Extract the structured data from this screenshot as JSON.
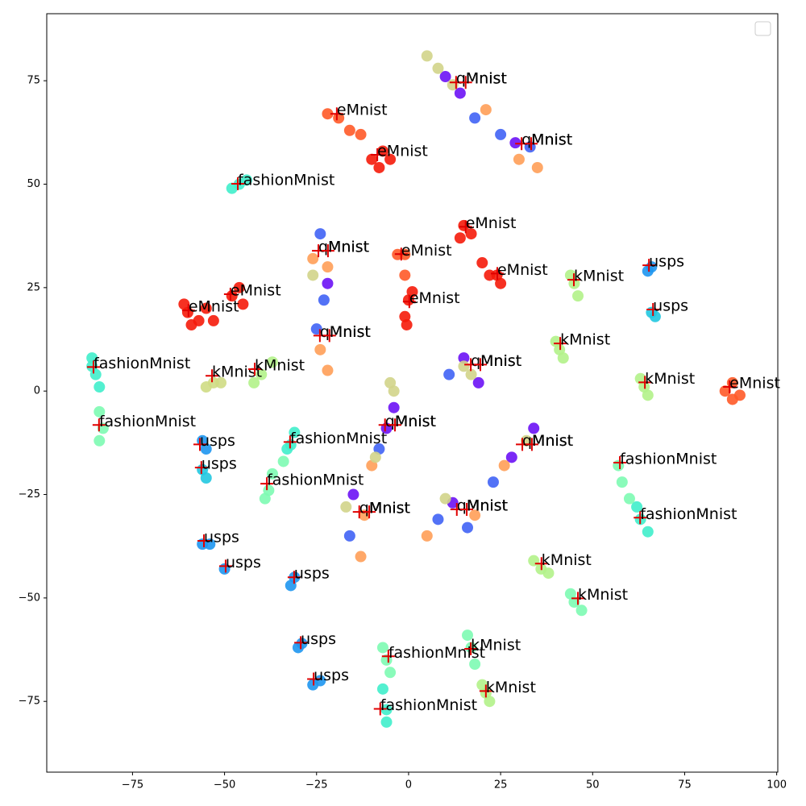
{
  "chart_data": {
    "type": "scatter",
    "xlim": [
      -98.3,
      100.3
    ],
    "ylim": [
      -92.1,
      91.2
    ],
    "xticks": [
      {
        "value": -75,
        "label": "−75"
      },
      {
        "value": -50,
        "label": "−50"
      },
      {
        "value": -25,
        "label": "−25"
      },
      0,
      25,
      50,
      75,
      100
    ],
    "yticks": [
      {
        "value": -75,
        "label": "−75"
      },
      {
        "value": -50,
        "label": "−50"
      },
      {
        "value": -25,
        "label": "−25"
      },
      0,
      25,
      50,
      75
    ],
    "legend": "upper right",
    "marker_color": "#e00000",
    "series": [
      {
        "color": "#f51b0a",
        "x": [
          -10,
          -7,
          -8,
          -5,
          -60,
          -57,
          -55,
          -61,
          -59,
          -53,
          -48,
          -46,
          -45,
          15,
          17,
          14,
          20,
          22,
          25,
          24,
          0,
          -1,
          1,
          -0.5
        ],
        "y": [
          56,
          58,
          54,
          56,
          19,
          17,
          20,
          21,
          16,
          17,
          23,
          25,
          21,
          40,
          38,
          37,
          31,
          28,
          26,
          28,
          22,
          18,
          24,
          16
        ]
      },
      {
        "color": "#ff5a28",
        "x": [
          -22,
          -19,
          -16,
          -13,
          86,
          88,
          88,
          90,
          -3,
          -1,
          -1
        ],
        "y": [
          67,
          66,
          63,
          62,
          0,
          -2,
          2,
          -1,
          33,
          33,
          28
        ]
      },
      {
        "color": "#40eecb",
        "x": [
          -46,
          -48,
          -44,
          -86,
          -85,
          -84,
          -86,
          -32,
          -31,
          -33,
          -6,
          -6,
          -7,
          63,
          65,
          62
        ],
        "y": [
          50,
          49,
          51,
          8,
          4,
          1,
          6,
          -13,
          -10,
          -14,
          -77,
          -80,
          -72,
          -31,
          -34,
          -28
        ]
      },
      {
        "color": "#7dfbb2",
        "x": [
          -83,
          -84,
          -84,
          -38,
          -37,
          -34,
          -39,
          -6,
          -7,
          -5,
          57,
          58,
          60,
          45,
          47,
          44,
          17,
          16,
          18
        ],
        "y": [
          -9,
          -12,
          -5,
          -24,
          -20,
          -17,
          -26,
          -65,
          -62,
          -68,
          -18,
          -22,
          -26,
          -51,
          -53,
          -49,
          -62,
          -59,
          -66
        ]
      },
      {
        "color": "#b2f28a",
        "x": [
          45,
          44,
          46,
          41,
          40,
          42,
          64,
          63,
          65,
          36,
          34,
          38,
          21,
          20,
          22,
          -40,
          -42,
          -37
        ],
        "y": [
          26,
          28,
          23,
          10,
          12,
          8,
          1,
          3,
          -1,
          -43,
          -41,
          -44,
          -73,
          -71,
          -75,
          4,
          2,
          7
        ]
      },
      {
        "color": "#cfdc84",
        "x": [
          -53,
          -55,
          -51
        ],
        "y": [
          2,
          1,
          2
        ]
      },
      {
        "color": "#1e96f0",
        "x": [
          65,
          66,
          -55,
          -56,
          -56,
          -54,
          -50,
          -31,
          -32,
          -30,
          -29,
          -26,
          -24
        ],
        "y": [
          29,
          30,
          -14,
          -12,
          -37,
          -37,
          -43,
          -45,
          -47,
          -62,
          -61,
          -71,
          -70
        ]
      },
      {
        "color": "#22c8e0",
        "x": [
          67,
          66,
          -56,
          -55
        ],
        "y": [
          18,
          19,
          -19,
          -21
        ]
      },
      {
        "color": "#6b12f5",
        "x": [
          10,
          14,
          29,
          -22,
          15,
          19,
          -4,
          -6,
          28,
          34,
          -15,
          12
        ],
        "y": [
          76,
          72,
          60,
          26,
          8,
          2,
          -4,
          -9,
          -16,
          -9,
          -25,
          -27
        ]
      },
      {
        "color": "#4063f5",
        "x": [
          18,
          25,
          33,
          -24,
          -23,
          -25,
          11,
          -8,
          23,
          -16,
          8,
          16
        ],
        "y": [
          66,
          62,
          59,
          38,
          22,
          15,
          4,
          -14,
          -22,
          -35,
          -31,
          -33
        ]
      },
      {
        "color": "#ff9f58",
        "x": [
          21,
          35,
          30,
          -26,
          -22,
          -24,
          -22,
          -10,
          -12,
          18,
          5,
          26,
          -13
        ],
        "y": [
          68,
          54,
          56,
          32,
          30,
          10,
          5,
          -18,
          -30,
          -30,
          -35,
          -18,
          -40
        ]
      },
      {
        "color": "#d2d48a",
        "x": [
          5,
          8,
          12,
          15,
          17,
          -5,
          -4,
          -9,
          32,
          -26,
          -17,
          10
        ],
        "y": [
          81,
          78,
          74,
          6,
          4,
          2,
          0,
          -16,
          -12,
          28,
          -28,
          -26
        ]
      }
    ],
    "annotations": [
      {
        "text": "qMnist",
        "x": 12.9,
        "y": 74.6
      },
      {
        "text": "Mnist",
        "x": 15.5,
        "y": 74.6
      },
      {
        "text": "qMnist",
        "x": 30.7,
        "y": 59.8
      },
      {
        "text": "Mnist",
        "x": 33.3,
        "y": 59.8
      },
      {
        "text": "eMnist",
        "x": -19.5,
        "y": 67.0
      },
      {
        "text": "eMnist",
        "x": -8.5,
        "y": 57.1
      },
      {
        "text": "fashionMnist",
        "x": -46.4,
        "y": 50.1
      },
      {
        "text": "eMnist",
        "x": 15.5,
        "y": 39.7
      },
      {
        "text": "eMnist",
        "x": -2.0,
        "y": 33.1
      },
      {
        "text": "eMnist",
        "x": 24.1,
        "y": 28.4
      },
      {
        "text": "eMnist",
        "x": 0.2,
        "y": 21.6
      },
      {
        "text": "eMnist",
        "x": -48.4,
        "y": 23.4
      },
      {
        "text": "eMnist",
        "x": -59.8,
        "y": 19.5
      },
      {
        "text": "qMnist",
        "x": -24.5,
        "y": 33.9
      },
      {
        "text": "Mnist",
        "x": -21.9,
        "y": 33.9
      },
      {
        "text": "usps",
        "x": 65.3,
        "y": 30.4
      },
      {
        "text": "usps",
        "x": 66.4,
        "y": 19.7
      },
      {
        "text": "kMnist",
        "x": 44.9,
        "y": 26.9
      },
      {
        "text": "kMnist",
        "x": 41.2,
        "y": 11.5
      },
      {
        "text": "kMnist",
        "x": 64.2,
        "y": 2.1
      },
      {
        "text": "kMnist",
        "x": -53.4,
        "y": 3.7
      },
      {
        "text": "kMnist",
        "x": -41.8,
        "y": 5.3
      },
      {
        "text": "eMnist",
        "x": 87.2,
        "y": 1.0
      },
      {
        "text": "qMnist",
        "x": -24.1,
        "y": 13.4
      },
      {
        "text": "Mnist",
        "x": -21.5,
        "y": 13.4
      },
      {
        "text": "fashionMnist",
        "x": -85.6,
        "y": 5.8
      },
      {
        "text": "fashionMnist",
        "x": -84.1,
        "y": -8.2
      },
      {
        "text": "qMnist",
        "x": 16.9,
        "y": 6.4
      },
      {
        "text": "Mnist",
        "x": 19.5,
        "y": 6.4
      },
      {
        "text": "qMnist",
        "x": -6.4,
        "y": -8.2
      },
      {
        "text": "Mnist",
        "x": -3.7,
        "y": -8.2
      },
      {
        "text": "qMnist",
        "x": 30.9,
        "y": -12.9
      },
      {
        "text": "Mnist",
        "x": 33.5,
        "y": -12.9
      },
      {
        "text": "usps",
        "x": -56.7,
        "y": -12.9
      },
      {
        "text": "usps",
        "x": -56.3,
        "y": -18.5
      },
      {
        "text": "fashionMnist",
        "x": -32.2,
        "y": -12.3
      },
      {
        "text": "fashionMnist",
        "x": -38.5,
        "y": -22.4
      },
      {
        "text": "fashionMnist",
        "x": 57.4,
        "y": -17.3
      },
      {
        "text": "fashionMnist",
        "x": 62.9,
        "y": -30.6
      },
      {
        "text": "qMnist",
        "x": -13.4,
        "y": -29.2
      },
      {
        "text": "Mnist",
        "x": -10.7,
        "y": -29.2
      },
      {
        "text": "qMnist",
        "x": 13.1,
        "y": -28.6
      },
      {
        "text": "Mnist",
        "x": 15.8,
        "y": -28.6
      },
      {
        "text": "usps",
        "x": -55.6,
        "y": -36.2
      },
      {
        "text": "usps",
        "x": -49.7,
        "y": -42.3
      },
      {
        "text": "usps",
        "x": -31.1,
        "y": -45.0
      },
      {
        "text": "usps",
        "x": -29.3,
        "y": -60.8
      },
      {
        "text": "usps",
        "x": -25.8,
        "y": -69.6
      },
      {
        "text": "kMnist",
        "x": 36.1,
        "y": -41.7
      },
      {
        "text": "kMnist",
        "x": 46.0,
        "y": -50.1
      },
      {
        "text": "kMnist",
        "x": 16.9,
        "y": -62.3
      },
      {
        "text": "kMnist",
        "x": 21.0,
        "y": -72.5
      },
      {
        "text": "fashionMnist",
        "x": -5.5,
        "y": -64.1
      },
      {
        "text": "fashionMnist",
        "x": -7.7,
        "y": -76.8
      }
    ]
  }
}
